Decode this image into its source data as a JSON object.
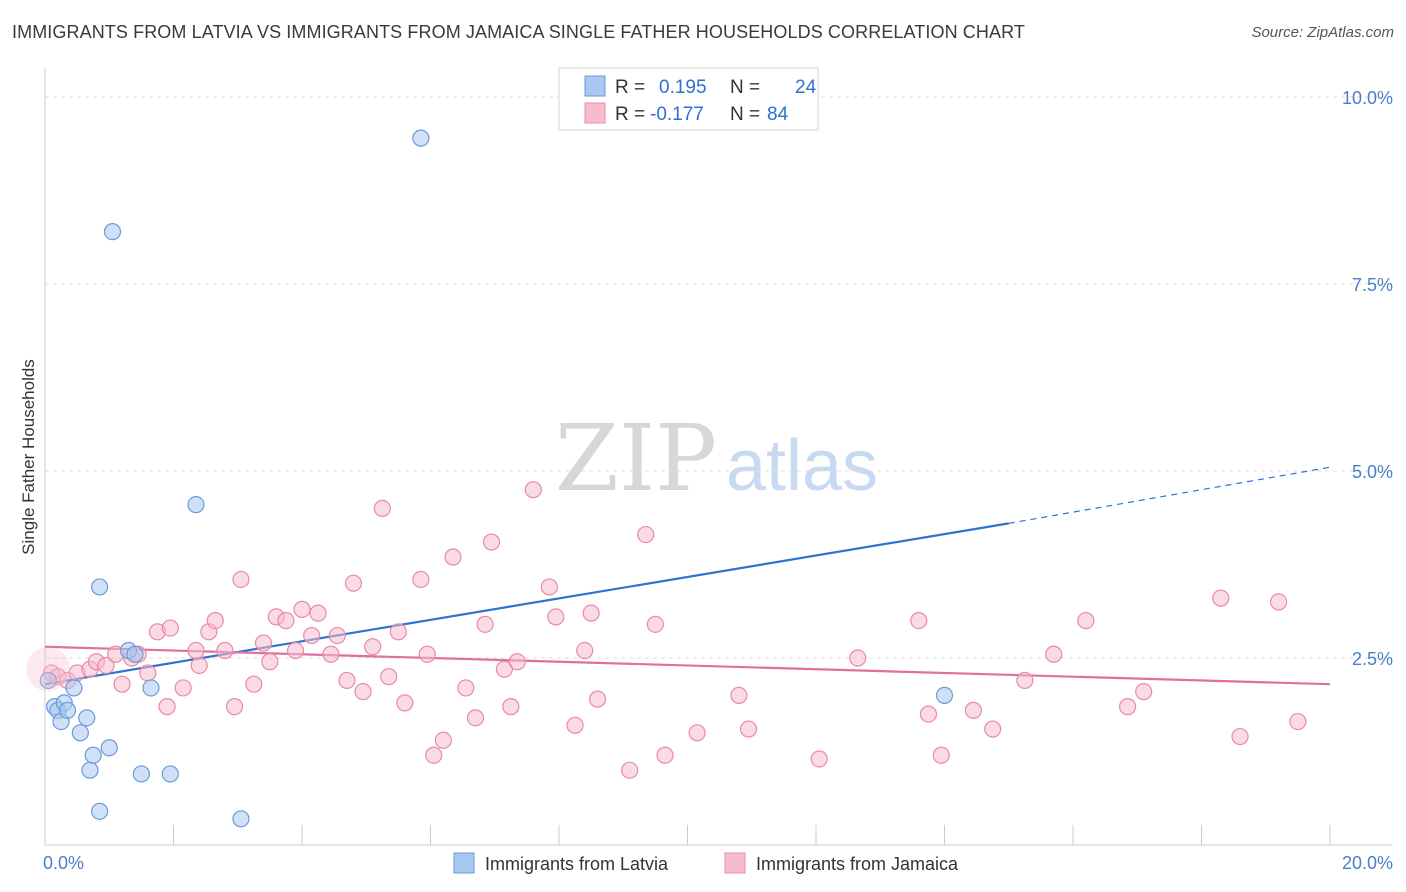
{
  "title": "IMMIGRANTS FROM LATVIA VS IMMIGRANTS FROM JAMAICA SINGLE FATHER HOUSEHOLDS CORRELATION CHART",
  "source": "Source: ZipAtlas.com",
  "watermark": {
    "zip": "ZIP",
    "atlas": "atlas"
  },
  "colors": {
    "latvia_fill": "#a9c8f0",
    "latvia_stroke": "#6a9ad8",
    "latvia_line": "#2f72d0",
    "jamaica_fill": "#f6bccd",
    "jamaica_stroke": "#e98aa8",
    "jamaica_line": "#e0709a",
    "tick": "#4a7fc8",
    "grid": "#dddddd"
  },
  "stats_legend": {
    "rows": [
      {
        "r_label": "R =",
        "r_value": "0.195",
        "n_label": "N =",
        "n_value": "24"
      },
      {
        "r_label": "R =",
        "r_value": "-0.177",
        "n_label": "N =",
        "n_value": "84"
      }
    ]
  },
  "chart_data": {
    "type": "scatter",
    "title": "IMMIGRANTS FROM LATVIA VS IMMIGRANTS FROM JAMAICA SINGLE FATHER HOUSEHOLDS CORRELATION CHART",
    "xlabel": "",
    "ylabel": "Single Father Households",
    "xlim": [
      0,
      20
    ],
    "ylim": [
      0,
      10.5
    ],
    "x_tick_labels": [
      "0.0%",
      "20.0%"
    ],
    "y_ticks": [
      2.5,
      5.0,
      7.5,
      10.0
    ],
    "y_tick_labels": [
      "2.5%",
      "5.0%",
      "7.5%",
      "10.0%"
    ],
    "series": [
      {
        "name": "Immigrants from Latvia",
        "r": 0.195,
        "n": 24,
        "trend": {
          "x0": 0,
          "y0": 2.15,
          "x1": 15.0,
          "y1": 4.3,
          "dashed_to_x": 20,
          "dashed_to_y": 5.05
        },
        "points": [
          [
            0.05,
            2.2
          ],
          [
            0.15,
            1.85
          ],
          [
            0.2,
            1.8
          ],
          [
            0.25,
            1.65
          ],
          [
            0.3,
            1.9
          ],
          [
            0.35,
            1.8
          ],
          [
            0.45,
            2.1
          ],
          [
            0.55,
            1.5
          ],
          [
            0.65,
            1.7
          ],
          [
            0.7,
            1.0
          ],
          [
            0.75,
            1.2
          ],
          [
            0.85,
            0.45
          ],
          [
            1.0,
            1.3
          ],
          [
            1.05,
            8.2
          ],
          [
            0.85,
            3.45
          ],
          [
            1.3,
            2.6
          ],
          [
            1.4,
            2.55
          ],
          [
            1.5,
            0.95
          ],
          [
            1.65,
            2.1
          ],
          [
            1.95,
            0.95
          ],
          [
            2.35,
            4.55
          ],
          [
            3.05,
            0.35
          ],
          [
            5.85,
            9.45
          ],
          [
            14.0,
            2.0
          ]
        ]
      },
      {
        "name": "Immigrants from Jamaica",
        "r": -0.177,
        "n": 84,
        "trend": {
          "x0": 0,
          "y0": 2.65,
          "x1": 20,
          "y1": 2.15
        },
        "points": [
          [
            0.1,
            2.3
          ],
          [
            0.2,
            2.25
          ],
          [
            0.35,
            2.2
          ],
          [
            0.5,
            2.3
          ],
          [
            0.7,
            2.35
          ],
          [
            0.8,
            2.45
          ],
          [
            0.95,
            2.4
          ],
          [
            1.1,
            2.55
          ],
          [
            1.2,
            2.15
          ],
          [
            1.35,
            2.5
          ],
          [
            1.45,
            2.55
          ],
          [
            1.6,
            2.3
          ],
          [
            1.75,
            2.85
          ],
          [
            1.9,
            1.85
          ],
          [
            1.95,
            2.9
          ],
          [
            2.15,
            2.1
          ],
          [
            2.35,
            2.6
          ],
          [
            2.4,
            2.4
          ],
          [
            2.55,
            2.85
          ],
          [
            2.65,
            3.0
          ],
          [
            2.8,
            2.6
          ],
          [
            2.95,
            1.85
          ],
          [
            3.05,
            3.55
          ],
          [
            3.25,
            2.15
          ],
          [
            3.4,
            2.7
          ],
          [
            3.5,
            2.45
          ],
          [
            3.6,
            3.05
          ],
          [
            3.75,
            3.0
          ],
          [
            3.9,
            2.6
          ],
          [
            4.0,
            3.15
          ],
          [
            4.15,
            2.8
          ],
          [
            4.25,
            3.1
          ],
          [
            4.45,
            2.55
          ],
          [
            4.55,
            2.8
          ],
          [
            4.7,
            2.2
          ],
          [
            4.8,
            3.5
          ],
          [
            4.95,
            2.05
          ],
          [
            5.1,
            2.65
          ],
          [
            5.25,
            4.5
          ],
          [
            5.35,
            2.25
          ],
          [
            5.5,
            2.85
          ],
          [
            5.6,
            1.9
          ],
          [
            5.85,
            3.55
          ],
          [
            5.95,
            2.55
          ],
          [
            6.05,
            1.2
          ],
          [
            6.2,
            1.4
          ],
          [
            6.35,
            3.85
          ],
          [
            6.55,
            2.1
          ],
          [
            6.7,
            1.7
          ],
          [
            6.85,
            2.95
          ],
          [
            6.95,
            4.05
          ],
          [
            7.15,
            2.35
          ],
          [
            7.25,
            1.85
          ],
          [
            7.35,
            2.45
          ],
          [
            7.6,
            4.75
          ],
          [
            7.85,
            3.45
          ],
          [
            7.95,
            3.05
          ],
          [
            8.25,
            1.6
          ],
          [
            8.4,
            2.6
          ],
          [
            8.5,
            3.1
          ],
          [
            8.6,
            1.95
          ],
          [
            9.1,
            1.0
          ],
          [
            9.35,
            4.15
          ],
          [
            9.5,
            2.95
          ],
          [
            9.65,
            1.2
          ],
          [
            10.15,
            1.5
          ],
          [
            10.8,
            2.0
          ],
          [
            10.95,
            1.55
          ],
          [
            12.05,
            1.15
          ],
          [
            12.65,
            2.5
          ],
          [
            13.6,
            3.0
          ],
          [
            13.75,
            1.75
          ],
          [
            13.95,
            1.2
          ],
          [
            14.45,
            1.8
          ],
          [
            14.75,
            1.55
          ],
          [
            15.25,
            2.2
          ],
          [
            15.7,
            2.55
          ],
          [
            16.2,
            3.0
          ],
          [
            16.85,
            1.85
          ],
          [
            17.1,
            2.05
          ],
          [
            18.3,
            3.3
          ],
          [
            18.6,
            1.45
          ],
          [
            19.2,
            3.25
          ],
          [
            19.5,
            1.65
          ]
        ]
      }
    ],
    "legend_position": "top-center"
  }
}
